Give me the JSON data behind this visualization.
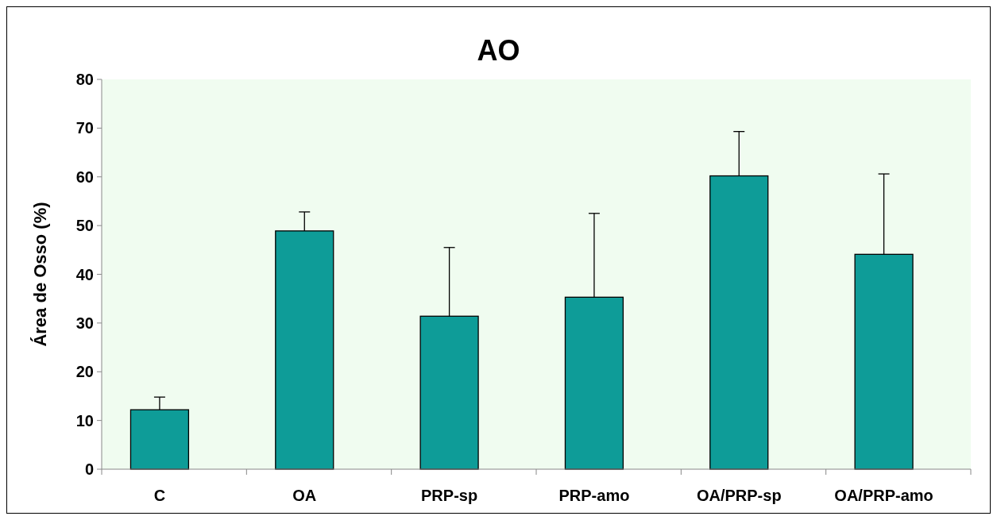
{
  "chart_data": {
    "type": "bar",
    "title": "AO",
    "ylabel": "Área de Osso (%)",
    "categories": [
      "C",
      "OA",
      "PRP-sp",
      "PRP-amo",
      "OA/PRP-sp",
      "OA/PRP-amo"
    ],
    "values": [
      12.2,
      48.9,
      31.4,
      35.3,
      60.2,
      44.1
    ],
    "errors": [
      [
        12.2,
        14.8
      ],
      [
        48.9,
        52.8
      ],
      [
        31.4,
        45.5
      ],
      [
        35.3,
        52.5
      ],
      [
        60.2,
        69.3
      ],
      [
        44.1,
        60.6
      ]
    ],
    "color": "#0e9c98",
    "ylim": [
      0,
      80
    ],
    "yticks": [
      0,
      10,
      20,
      30,
      40,
      50,
      60,
      70,
      80
    ],
    "grid": false
  }
}
